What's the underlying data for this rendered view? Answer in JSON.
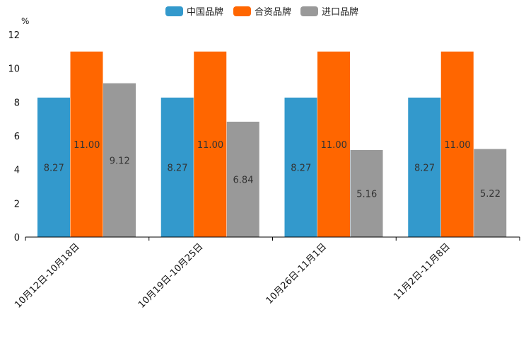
{
  "chart_data": {
    "type": "bar",
    "unit_label": "%",
    "categories": [
      "10月12日-10月18日",
      "10月19日-10月25日",
      "10月26日-11月1日",
      "11月2日-11月8日"
    ],
    "series": [
      {
        "name": "中国品牌",
        "color": "#3399cc",
        "values": [
          8.27,
          8.27,
          8.27,
          8.27
        ],
        "labels": [
          "8.27",
          "8.27",
          "8.27",
          "8.27"
        ]
      },
      {
        "name": "合资品牌",
        "color": "#ff6600",
        "values": [
          11.0,
          11.0,
          11.0,
          11.0
        ],
        "labels": [
          "11.00",
          "11.00",
          "11.00",
          "11.00"
        ]
      },
      {
        "name": "进口品牌",
        "color": "#999999",
        "values": [
          9.12,
          6.84,
          5.16,
          5.22
        ],
        "labels": [
          "9.12",
          "6.84",
          "5.16",
          "5.22"
        ]
      }
    ],
    "y_ticks": [
      "0",
      "2",
      "4",
      "6",
      "8",
      "10",
      "12"
    ],
    "ylim": [
      0,
      12
    ],
    "legend_position": "top-center",
    "grid": false
  }
}
